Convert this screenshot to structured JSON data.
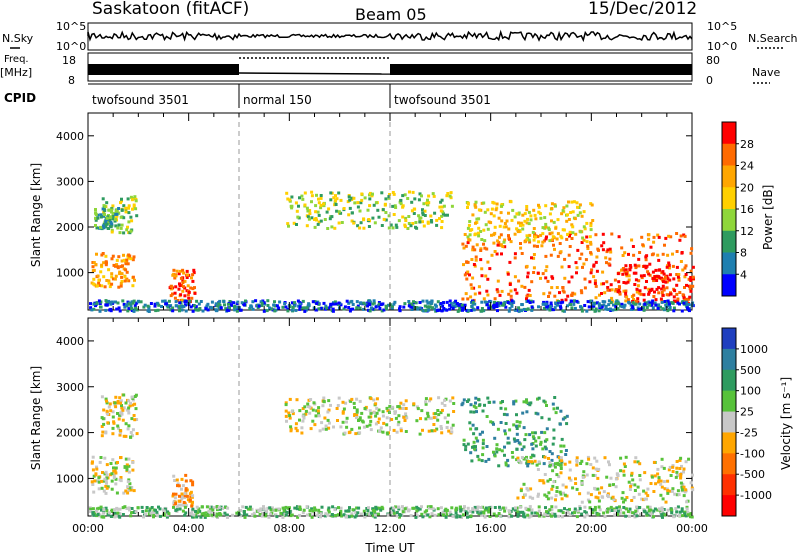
{
  "header": {
    "station": "Saskatoon (fitACF)",
    "beam": "Beam 05",
    "date": "15/Dec/2012"
  },
  "panels": {
    "nsky_label": "N.Sky",
    "nsky_ticks": [
      "10^5",
      "10^0"
    ],
    "nsearch_label": "N.Search",
    "nsearch_ticks": [
      "10^5",
      "10^0"
    ],
    "freq_label": "Freq.",
    "freq_unit": "[MHz]",
    "freq_ticks": [
      "18",
      "8"
    ],
    "nave_label": "Nave",
    "nave_ticks": [
      "80",
      "0"
    ],
    "cpid_label": "CPID",
    "cpid_segments": [
      {
        "label": "twofsound 3501",
        "start_hour": 0,
        "end_hour": 6
      },
      {
        "label": "normal 150",
        "start_hour": 6,
        "end_hour": 12
      },
      {
        "label": "twofsound 3501",
        "start_hour": 12,
        "end_hour": 24
      }
    ]
  },
  "chart_data": [
    {
      "type": "heatmap",
      "name": "power",
      "xlabel": "",
      "ylabel": "Slant Range [km]",
      "xlim": [
        0,
        24
      ],
      "ylim": [
        180,
        4500
      ],
      "yticks": [
        1000,
        2000,
        3000,
        4000
      ],
      "colorbar": {
        "label": "Power [dB]",
        "ticks": [
          "28",
          "24",
          "20",
          "16",
          "12",
          "8",
          "4"
        ],
        "colors": [
          "#ff0000",
          "#ff6a00",
          "#ffa600",
          "#ffd000",
          "#8fd63a",
          "#2e9b5f",
          "#1e7fb0",
          "#0000ff"
        ]
      },
      "regions": [
        {
          "x0": 0.1,
          "x1": 1.8,
          "y0": 700,
          "y1": 1500,
          "level": 5
        },
        {
          "x0": 0.5,
          "x1": 1.9,
          "y0": 1900,
          "y1": 2700,
          "level": 3
        },
        {
          "x0": 0.2,
          "x1": 1.2,
          "y0": 2000,
          "y1": 2500,
          "level": 2
        },
        {
          "x0": 3.2,
          "x1": 4.2,
          "y0": 400,
          "y1": 1100,
          "level": 6
        },
        {
          "x0": 7.8,
          "x1": 14.5,
          "y0": 2000,
          "y1": 2800,
          "level": 3
        },
        {
          "x0": 14.8,
          "x1": 24,
          "y0": 400,
          "y1": 1900,
          "level": 6
        },
        {
          "x0": 15.0,
          "x1": 20.0,
          "y0": 1700,
          "y1": 2600,
          "level": 4
        },
        {
          "x0": 21.0,
          "x1": 24,
          "y0": 350,
          "y1": 1200,
          "level": 7
        },
        {
          "x0": 0,
          "x1": 24,
          "y0": 180,
          "y1": 420,
          "level": 1
        }
      ]
    },
    {
      "type": "heatmap",
      "name": "velocity",
      "xlabel": "Time UT",
      "ylabel": "Slant Range [km]",
      "xlim": [
        0,
        24
      ],
      "ylim": [
        180,
        4500
      ],
      "yticks": [
        1000,
        2000,
        3000,
        4000
      ],
      "xticks": [
        "00:00",
        "04:00",
        "08:00",
        "12:00",
        "16:00",
        "20:00",
        "00:00"
      ],
      "colorbar": {
        "label": "Velocity [m s⁻¹]",
        "ticks": [
          "1000",
          "500",
          "100",
          "25",
          "-25",
          "-100",
          "-500",
          "-1000"
        ],
        "colors": [
          "#1f3fbf",
          "#2e7fa0",
          "#2e9b5f",
          "#57c23a",
          "#c8c8c8",
          "#ffa600",
          "#ff7000",
          "#ff3000",
          "#ff0000"
        ]
      },
      "regions": [
        {
          "x0": 0.1,
          "x1": 1.8,
          "y0": 700,
          "y1": 1500,
          "level": 4
        },
        {
          "x0": 0.5,
          "x1": 1.9,
          "y0": 1900,
          "y1": 2900,
          "level": 4
        },
        {
          "x0": 3.3,
          "x1": 4.1,
          "y0": 400,
          "y1": 1100,
          "level": 3
        },
        {
          "x0": 7.8,
          "x1": 14.5,
          "y0": 2000,
          "y1": 2800,
          "level": 4
        },
        {
          "x0": 14.8,
          "x1": 19.0,
          "y0": 1300,
          "y1": 2800,
          "level": 6
        },
        {
          "x0": 17.0,
          "x1": 24,
          "y0": 500,
          "y1": 1500,
          "level": 4
        },
        {
          "x0": 0,
          "x1": 24,
          "y0": 180,
          "y1": 420,
          "level": 5
        }
      ]
    }
  ]
}
